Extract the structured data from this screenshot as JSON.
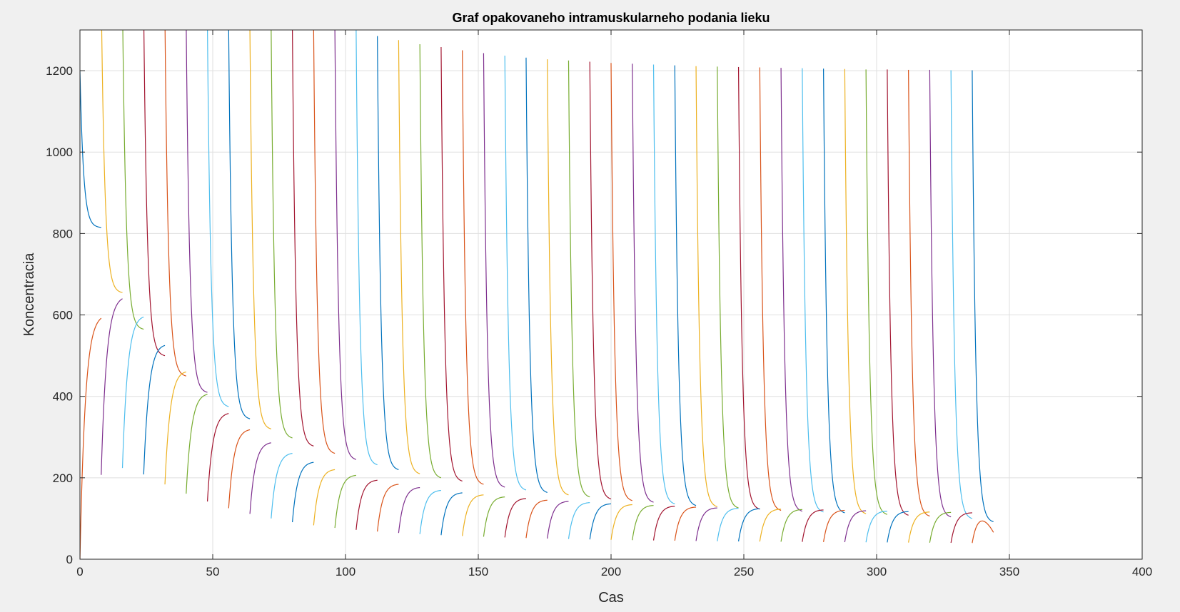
{
  "chart_data": {
    "type": "line",
    "title": "Graf opakovaneho intramuskularneho podania lieku",
    "xlabel": "Cas",
    "ylabel": "Koncentracia",
    "xlim": [
      0,
      400
    ],
    "ylim": [
      0,
      1300
    ],
    "xticks": [
      0,
      50,
      100,
      150,
      200,
      250,
      300,
      350,
      400
    ],
    "yticks": [
      0,
      200,
      400,
      600,
      800,
      1000,
      1200
    ],
    "grid": true,
    "legend": "none",
    "dose_interval": 8,
    "num_doses": 43,
    "colors": [
      "#0072bd",
      "#d95319",
      "#edb120",
      "#7e2f8e",
      "#77ac30",
      "#4dbeee",
      "#a2142f"
    ],
    "series_families": [
      {
        "description_key": "intramuscular",
        "start_value": 0,
        "peak_values_by_dose": [
          592,
          640,
          600,
          530,
          465,
          408,
          360,
          320,
          288,
          262,
          240,
          222,
          208,
          196,
          186,
          178,
          171,
          165,
          160,
          155,
          151,
          147,
          144,
          141,
          138,
          136,
          134,
          132,
          130,
          128,
          127,
          126,
          125,
          124,
          123,
          122,
          121,
          120,
          119,
          118,
          117,
          116,
          115
        ],
        "end_values_by_dose": [
          592,
          640,
          595,
          525,
          460,
          405,
          358,
          318,
          286,
          260,
          238,
          220,
          206,
          194,
          184,
          176,
          169,
          163,
          158,
          153,
          149,
          145,
          142,
          139,
          136,
          134,
          132,
          130,
          128,
          126,
          125,
          124,
          123,
          122,
          121,
          120,
          119,
          118,
          117,
          116,
          115,
          114,
          66
        ]
      },
      {
        "description_key": "intravenous",
        "start_value": 1200,
        "peak_values_by_dose": [
          1200,
          1400,
          1380,
          1350,
          1330,
          1320,
          1310,
          1300,
          1300,
          1300,
          1300,
          1300,
          1300,
          1300,
          1285,
          1275,
          1265,
          1258,
          1250,
          1243,
          1237,
          1232,
          1228,
          1225,
          1222,
          1219,
          1217,
          1215,
          1213,
          1211,
          1210,
          1209,
          1208,
          1207,
          1206,
          1205,
          1204,
          1203,
          1203,
          1202,
          1202,
          1201,
          1201
        ],
        "end_values_by_dose": [
          815,
          655,
          565,
          500,
          450,
          410,
          375,
          345,
          320,
          298,
          278,
          260,
          245,
          232,
          220,
          210,
          200,
          192,
          184,
          177,
          170,
          164,
          158,
          153,
          148,
          144,
          140,
          136,
          132,
          129,
          126,
          123,
          120,
          118,
          116,
          114,
          112,
          110,
          108,
          106,
          104,
          100,
          92
        ]
      }
    ]
  }
}
